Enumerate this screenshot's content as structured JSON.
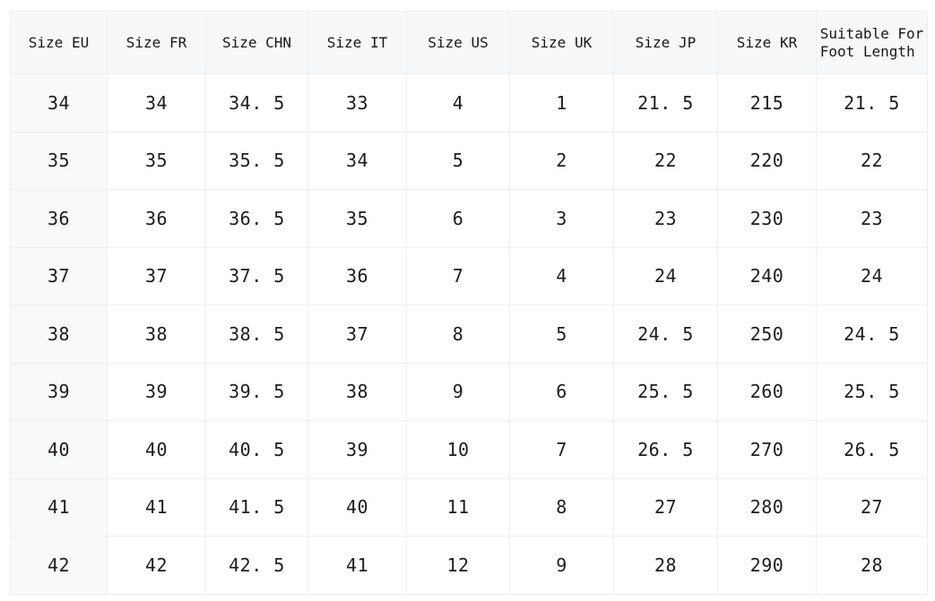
{
  "accent_colors": {
    "header_background": "#f7f8f9",
    "first_column_background": "#f8f9fa",
    "grid_line": "#edeff1",
    "text": "#1c1c1e",
    "page_background": "#ffffff"
  },
  "chart_data": {
    "type": "table",
    "columns": [
      "Size EU",
      "Size FR",
      "Size CHN",
      "Size IT",
      "Size US",
      "Size UK",
      "Size JP",
      "Size KR",
      "Suitable For\nFoot Length"
    ],
    "rows": [
      [
        "34",
        "34",
        "34.5",
        "33",
        "4",
        "1",
        "21.5",
        "215",
        "21.5"
      ],
      [
        "35",
        "35",
        "35.5",
        "34",
        "5",
        "2",
        "22",
        "220",
        "22"
      ],
      [
        "36",
        "36",
        "36.5",
        "35",
        "6",
        "3",
        "23",
        "230",
        "23"
      ],
      [
        "37",
        "37",
        "37.5",
        "36",
        "7",
        "4",
        "24",
        "240",
        "24"
      ],
      [
        "38",
        "38",
        "38.5",
        "37",
        "8",
        "5",
        "24.5",
        "250",
        "24.5"
      ],
      [
        "39",
        "39",
        "39.5",
        "38",
        "9",
        "6",
        "25.5",
        "260",
        "25.5"
      ],
      [
        "40",
        "40",
        "40.5",
        "39",
        "10",
        "7",
        "26.5",
        "270",
        "26.5"
      ],
      [
        "41",
        "41",
        "41.5",
        "40",
        "11",
        "8",
        "27",
        "280",
        "27"
      ],
      [
        "42",
        "42",
        "42.5",
        "41",
        "12",
        "9",
        "28",
        "290",
        "28"
      ]
    ]
  }
}
